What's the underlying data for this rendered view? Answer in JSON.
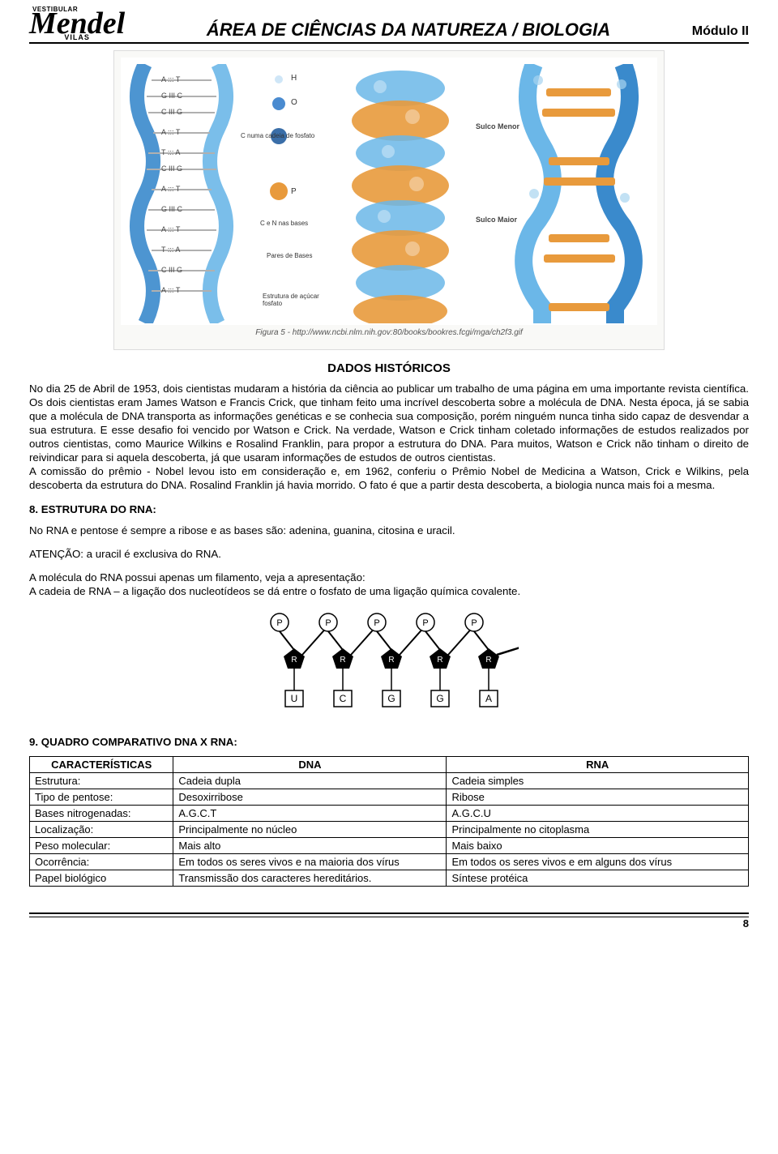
{
  "header": {
    "logo_top": "VESTIBULAR",
    "logo_main": "Mendel",
    "logo_bottom": "VILAS",
    "title": "ÁREA DE CIÊNCIAS DA NATUREZA / BIOLOGIA",
    "module": "Módulo II"
  },
  "dna_figure": {
    "helix_color_blue": "#6bb7e8",
    "helix_color_blue_dark": "#3a8acc",
    "sphere_orange": "#e89a3c",
    "sphere_blue": "#4a8bd0",
    "sphere_light": "#cfe6f7",
    "background": "#ffffff",
    "border": "#dcdcdc",
    "base_pairs": [
      "A ::: T",
      "G III C",
      "C III G",
      "A ::: T",
      "T ::: A",
      "C III G",
      "A ::: T",
      "G III C",
      "A ::: T",
      "T ::: A",
      "C III G",
      "A ::: T"
    ],
    "center_labels": {
      "H": "H",
      "O": "O",
      "P": "P",
      "c_cadeia": "C numa cadeia de fosfato",
      "cn_bases": "C e N nas bases",
      "pares_bases": "Pares de Bases",
      "estrutura": "Estrutura de açúcar fosfato"
    },
    "right_labels": {
      "sulco_menor": "Sulco Menor",
      "sulco_maior": "Sulco Maior"
    },
    "caption": "Figura 5 - http://www.ncbi.nlm.nih.gov:80/books/bookres.fcgi/mga/ch2f3.gif"
  },
  "section_dados": {
    "title": "DADOS HISTÓRICOS",
    "paragraph": "No dia 25 de Abril de 1953, dois cientistas mudaram a história da ciência ao publicar um trabalho de uma página em uma importante revista científica. Os dois cientistas eram James Watson e Francis Crick, que tinham feito uma incrível descoberta sobre a molécula de DNA. Nesta época, já se sabia que a molécula de DNA transporta as informações genéticas e se conhecia sua composição, porém ninguém nunca tinha sido capaz de desvendar a sua estrutura. E esse desafio foi vencido por Watson e Crick. Na verdade, Watson e Crick tinham coletado informações de estudos realizados por outros cientistas, como Maurice Wilkins e Rosalind Franklin, para propor a estrutura do DNA. Para muitos, Watson e Crick não tinham o direito de reivindicar para si aquela descoberta, já que usaram informações de estudos de outros cientistas.",
    "paragraph2": "A comissão do prêmio - Nobel levou isto em consideração e, em 1962, conferiu o Prêmio Nobel de Medicina a Watson, Crick e Wilkins, pela descoberta da estrutura do DNA. Rosalind Franklin já havia morrido. O fato é que a partir desta descoberta, a biologia nunca mais foi a mesma."
  },
  "section_rna": {
    "heading": "8. ESTRUTURA DO RNA:",
    "line1": "No RNA e pentose é sempre a ribose e as bases são: adenina, guanina, citosina e uracil.",
    "line2": "ATENÇÃO: a uracil é exclusiva do RNA.",
    "line3": "A molécula do RNA possui apenas um filamento, veja a apresentação:",
    "line4": "A cadeia de RNA – a ligação dos nucleotídeos se dá entre o fosfato de uma ligação química covalente.",
    "bases": [
      "U",
      "C",
      "G",
      "G",
      "A"
    ],
    "p_label": "P",
    "r_label": "R"
  },
  "section_quadro": {
    "heading": "9. QUADRO COMPARATIVO DNA X RNA:",
    "columns": [
      "CARACTERÍSTICAS",
      "DNA",
      "RNA"
    ],
    "rows": [
      [
        "Estrutura:",
        "Cadeia dupla",
        "Cadeia simples"
      ],
      [
        "Tipo de pentose:",
        "Desoxirribose",
        "Ribose"
      ],
      [
        "Bases nitrogenadas:",
        "A.G.C.T",
        "A.G.C.U"
      ],
      [
        "Localização:",
        "Principalmente no núcleo",
        "Principalmente no citoplasma"
      ],
      [
        "Peso molecular:",
        "Mais alto",
        "Mais baixo"
      ],
      [
        "Ocorrência:",
        "Em todos os seres vivos e na maioria dos vírus",
        "Em todos os seres vivos e em alguns dos vírus"
      ],
      [
        "Papel biológico",
        "Transmissão dos caracteres hereditários.",
        "Síntese protéica"
      ]
    ]
  },
  "footer": {
    "page_number": "8"
  }
}
